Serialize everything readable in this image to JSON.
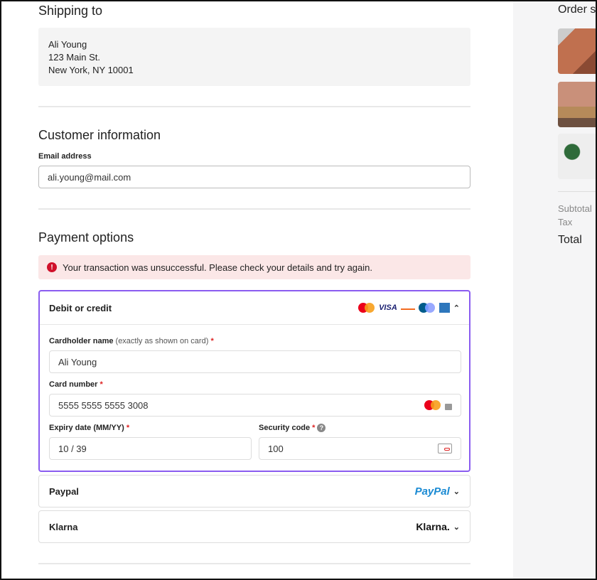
{
  "shipping": {
    "title": "Shipping to",
    "name": "Ali Young",
    "street": "123 Main St.",
    "city": "New York, NY 10001"
  },
  "customer": {
    "title": "Customer information",
    "email_label": "Email address",
    "email_value": "ali.young@mail.com"
  },
  "payment": {
    "title": "Payment options",
    "error": "Your transaction was unsuccessful. Please check your details and try again.",
    "debit": {
      "label": "Debit or credit",
      "cards": [
        "mastercard",
        "visa",
        "discover",
        "maestro",
        "amex"
      ],
      "cardholder_label": "Cardholder name",
      "cardholder_note": "(exactly as shown on card)",
      "cardholder_value": "Ali Young",
      "number_label": "Card number",
      "number_value": "5555 5555 5555 3008",
      "expiry_label": "Expiry date (MM/YY)",
      "expiry_value": "10 / 39",
      "cvc_label": "Security code",
      "cvc_value": "100",
      "required_mark": "*"
    },
    "paypal": {
      "label": "Paypal",
      "logo": "PayPal"
    },
    "klarna": {
      "label": "Klarna",
      "logo": "Klarna."
    }
  },
  "summary": {
    "title": "Order s",
    "subtotal": "Subtotal",
    "tax": "Tax",
    "total": "Total"
  },
  "colors": {
    "accent": "#8a5cf0",
    "error_bg": "#fbe7e7",
    "error_icon": "#d0112b"
  }
}
